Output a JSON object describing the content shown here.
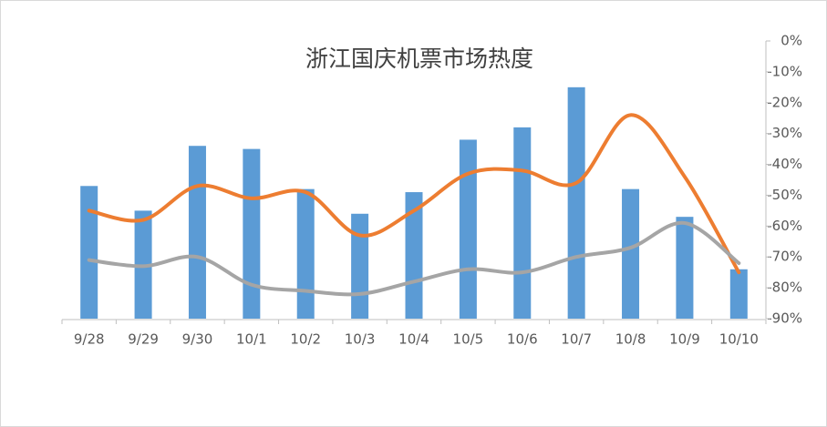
{
  "chart_data": {
    "type": "bar-line",
    "title": "浙江国庆机票市场热度",
    "categories": [
      "9/28",
      "9/29",
      "9/30",
      "10/1",
      "10/2",
      "10/3",
      "10/4",
      "10/5",
      "10/6",
      "10/7",
      "10/8",
      "10/9",
      "10/10"
    ],
    "series": [
      {
        "type": "bar",
        "color": "#5b9bd5",
        "values": [
          -47,
          -55,
          -34,
          -35,
          -48,
          -56,
          -49,
          -32,
          -28,
          -15,
          -48,
          -57,
          -74
        ]
      },
      {
        "type": "line",
        "color": "#ed7d31",
        "values": [
          -55,
          -58,
          -47,
          -51,
          -49,
          -63,
          -55,
          -43,
          -42,
          -46,
          -24,
          -44,
          -75
        ]
      },
      {
        "type": "line",
        "color": "#a5a5a5",
        "values": [
          -71,
          -73,
          -70,
          -79,
          -81,
          -82,
          -78,
          -74,
          -75,
          -70,
          -67,
          -59,
          -72
        ]
      }
    ],
    "ylim": [
      -90,
      0
    ],
    "yticks": [
      {
        "value": 0,
        "label": "0%"
      },
      {
        "value": -10,
        "label": "-10%"
      },
      {
        "value": -20,
        "label": "-20%"
      },
      {
        "value": -30,
        "label": "-30%"
      },
      {
        "value": -40,
        "label": "-40%"
      },
      {
        "value": -50,
        "label": "-50%"
      },
      {
        "value": -60,
        "label": "-60%"
      },
      {
        "value": -70,
        "label": "-70%"
      },
      {
        "value": -80,
        "label": "-80%"
      },
      {
        "value": -90,
        "label": "-90%"
      }
    ],
    "grid": false
  }
}
